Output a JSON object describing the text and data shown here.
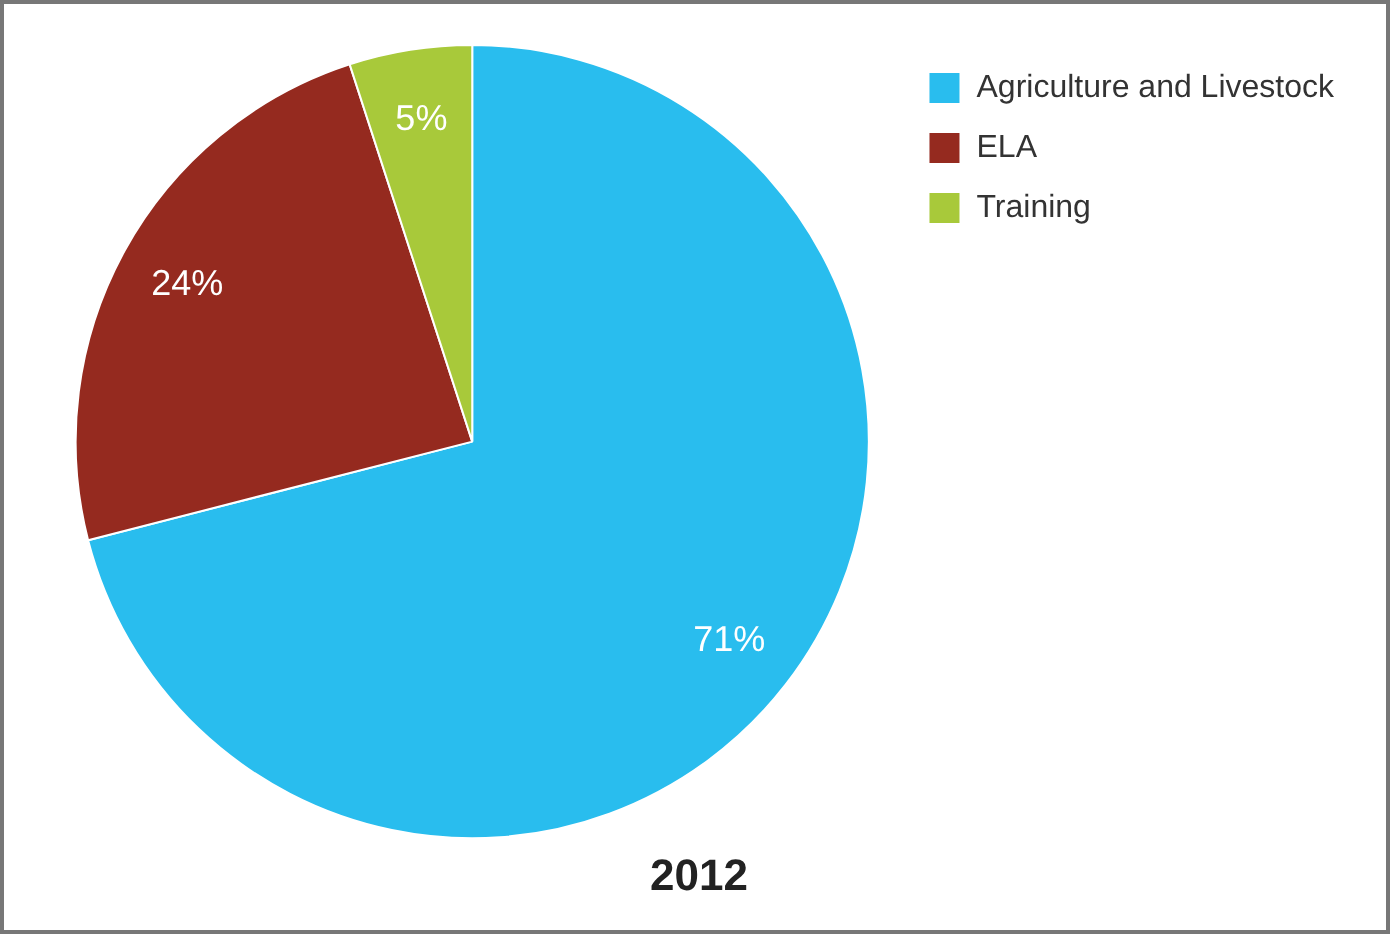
{
  "chart_data": {
    "type": "pie",
    "title": "2012",
    "categories": [
      "Agriculture and Livestock",
      "ELA",
      "Training"
    ],
    "values": [
      71,
      24,
      5
    ],
    "colors": [
      "#29bdee",
      "#952a1f",
      "#a8c93a"
    ],
    "value_labels": [
      "71%",
      "24%",
      "5%"
    ],
    "legend": "top right"
  }
}
